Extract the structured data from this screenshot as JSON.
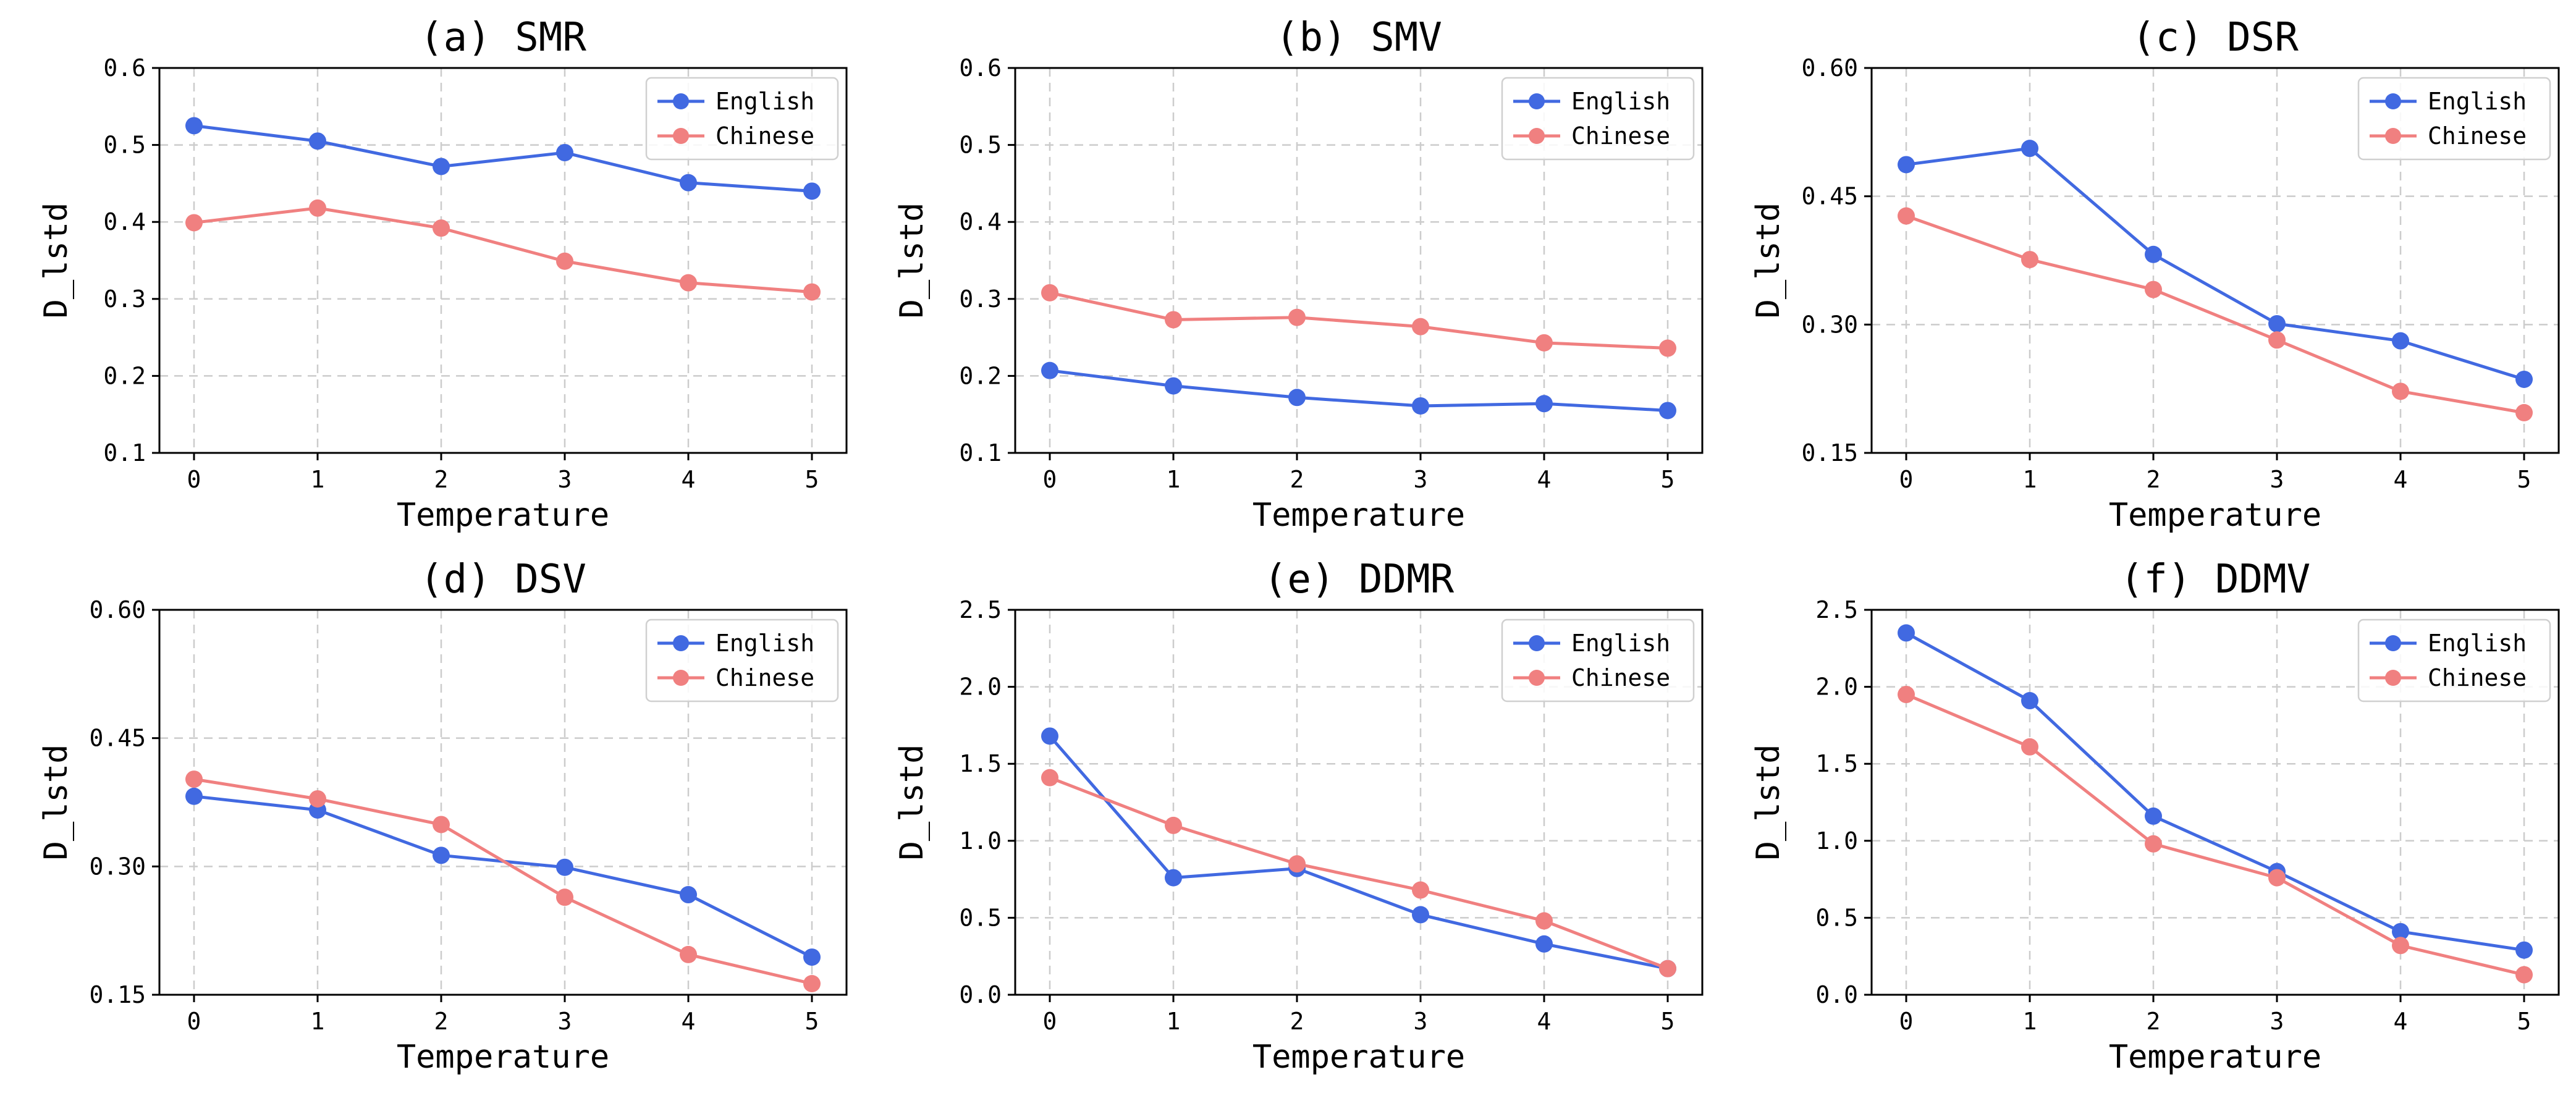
{
  "colors": {
    "English": "#4169e1",
    "Chinese": "#f08080"
  },
  "chart_data": [
    {
      "type": "line",
      "title": "(a) SMR",
      "xlabel": "Temperature",
      "ylabel": "D_lstd",
      "x": [
        0,
        1,
        2,
        3,
        4,
        5
      ],
      "ylim": [
        0.1,
        0.6
      ],
      "yticks": [
        0.1,
        0.2,
        0.3,
        0.4,
        0.5,
        0.6
      ],
      "ytick_labels": [
        "0.1",
        "0.2",
        "0.3",
        "0.4",
        "0.5",
        "0.6"
      ],
      "legend": "top-right",
      "grid": true,
      "series": [
        {
          "name": "English",
          "values": [
            0.525,
            0.505,
            0.472,
            0.49,
            0.451,
            0.44
          ]
        },
        {
          "name": "Chinese",
          "values": [
            0.399,
            0.418,
            0.392,
            0.349,
            0.321,
            0.309
          ]
        }
      ]
    },
    {
      "type": "line",
      "title": "(b) SMV",
      "xlabel": "Temperature",
      "ylabel": "D_lstd",
      "x": [
        0,
        1,
        2,
        3,
        4,
        5
      ],
      "ylim": [
        0.1,
        0.6
      ],
      "yticks": [
        0.1,
        0.2,
        0.3,
        0.4,
        0.5,
        0.6
      ],
      "ytick_labels": [
        "0.1",
        "0.2",
        "0.3",
        "0.4",
        "0.5",
        "0.6"
      ],
      "legend": "top-right",
      "grid": true,
      "series": [
        {
          "name": "English",
          "values": [
            0.207,
            0.187,
            0.172,
            0.161,
            0.164,
            0.155
          ]
        },
        {
          "name": "Chinese",
          "values": [
            0.308,
            0.273,
            0.276,
            0.264,
            0.243,
            0.236
          ]
        }
      ]
    },
    {
      "type": "line",
      "title": "(c) DSR",
      "xlabel": "Temperature",
      "ylabel": "D_lstd",
      "x": [
        0,
        1,
        2,
        3,
        4,
        5
      ],
      "ylim": [
        0.15,
        0.6
      ],
      "yticks": [
        0.15,
        0.3,
        0.45,
        0.6
      ],
      "ytick_labels": [
        "0.15",
        "0.30",
        "0.45",
        "0.60"
      ],
      "legend": "top-right",
      "grid": true,
      "series": [
        {
          "name": "English",
          "values": [
            0.487,
            0.506,
            0.382,
            0.301,
            0.281,
            0.236
          ]
        },
        {
          "name": "Chinese",
          "values": [
            0.427,
            0.376,
            0.341,
            0.282,
            0.222,
            0.197
          ]
        }
      ]
    },
    {
      "type": "line",
      "title": "(d) DSV",
      "xlabel": "Temperature",
      "ylabel": "D_lstd",
      "x": [
        0,
        1,
        2,
        3,
        4,
        5
      ],
      "ylim": [
        0.15,
        0.6
      ],
      "yticks": [
        0.15,
        0.3,
        0.45,
        0.6
      ],
      "ytick_labels": [
        "0.15",
        "0.30",
        "0.45",
        "0.60"
      ],
      "legend": "top-right",
      "grid": true,
      "series": [
        {
          "name": "English",
          "values": [
            0.382,
            0.366,
            0.313,
            0.299,
            0.267,
            0.194
          ]
        },
        {
          "name": "Chinese",
          "values": [
            0.402,
            0.379,
            0.349,
            0.264,
            0.197,
            0.163
          ]
        }
      ]
    },
    {
      "type": "line",
      "title": "(e) DDMR",
      "xlabel": "Temperature",
      "ylabel": "D_lstd",
      "x": [
        0,
        1,
        2,
        3,
        4,
        5
      ],
      "ylim": [
        0,
        2.5
      ],
      "yticks": [
        0,
        0.5,
        1,
        1.5,
        2,
        2.5
      ],
      "ytick_labels": [
        "0.0",
        "0.5",
        "1.0",
        "1.5",
        "2.0",
        "2.5"
      ],
      "legend": "top-right",
      "grid": true,
      "series": [
        {
          "name": "English",
          "values": [
            1.68,
            0.76,
            0.82,
            0.52,
            0.33,
            0.17
          ]
        },
        {
          "name": "Chinese",
          "values": [
            1.41,
            1.1,
            0.85,
            0.68,
            0.48,
            0.17
          ]
        }
      ]
    },
    {
      "type": "line",
      "title": "(f) DDMV",
      "xlabel": "Temperature",
      "ylabel": "D_lstd",
      "x": [
        0,
        1,
        2,
        3,
        4,
        5
      ],
      "ylim": [
        0,
        2.5
      ],
      "yticks": [
        0,
        0.5,
        1,
        1.5,
        2,
        2.5
      ],
      "ytick_labels": [
        "0.0",
        "0.5",
        "1.0",
        "1.5",
        "2.0",
        "2.5"
      ],
      "legend": "top-right",
      "grid": true,
      "series": [
        {
          "name": "English",
          "values": [
            2.35,
            1.91,
            1.16,
            0.8,
            0.41,
            0.29
          ]
        },
        {
          "name": "Chinese",
          "values": [
            1.95,
            1.61,
            0.98,
            0.76,
            0.32,
            0.13
          ]
        }
      ]
    }
  ]
}
